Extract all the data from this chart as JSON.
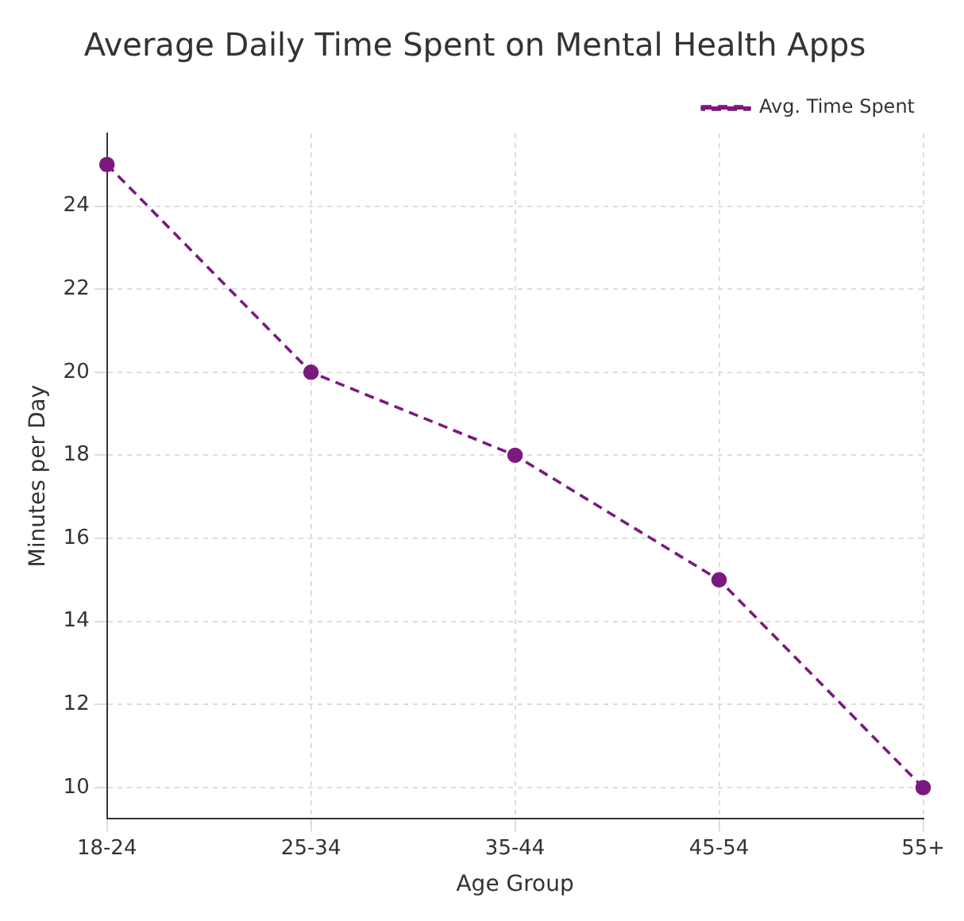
{
  "chart_data": {
    "type": "line",
    "title": "Average Daily Time Spent on Mental Health Apps",
    "xlabel": "Age Group",
    "ylabel": "Minutes per Day",
    "categories": [
      "18-24",
      "25-34",
      "35-44",
      "45-54",
      "55+"
    ],
    "series": [
      {
        "name": "Avg. Time Spent",
        "color": "#7b1a7e",
        "values": [
          25,
          20,
          18,
          15,
          10
        ]
      }
    ],
    "ylim": [
      9.25,
      25.75
    ],
    "yticks": [
      10,
      12,
      14,
      16,
      18,
      20,
      22,
      24
    ],
    "grid": true,
    "legend": "top right",
    "marker": "circle",
    "line_style": "dashed"
  }
}
